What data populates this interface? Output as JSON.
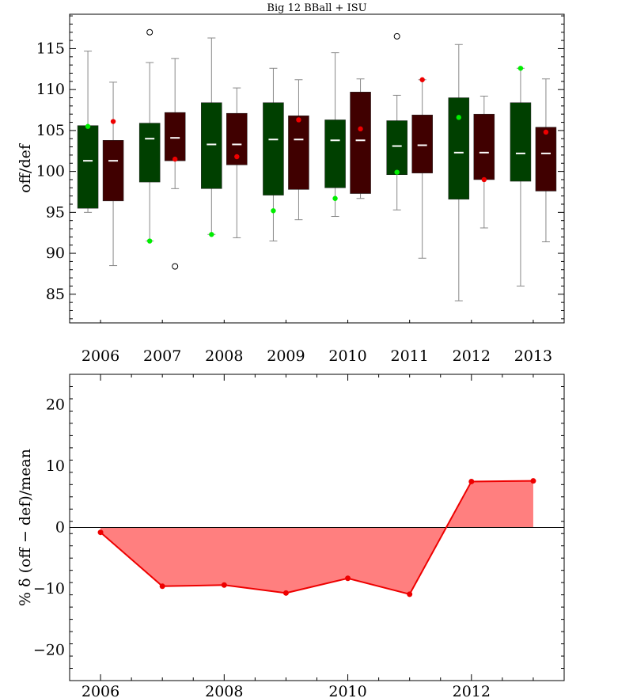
{
  "chart_data": [
    {
      "type": "box",
      "title": "Big 12 BBall + ISU",
      "ylabel": "off/def",
      "xlabel": "",
      "ylim": [
        81.5,
        119.2
      ],
      "yticks": [
        85,
        90,
        95,
        100,
        105,
        110,
        115
      ],
      "categories": [
        "2006",
        "2007",
        "2008",
        "2009",
        "2010",
        "2011",
        "2012",
        "2013"
      ],
      "series": [
        {
          "name": "",
          "box_color": "#004000",
          "marker_color": "#00ee00",
          "boxes": [
            {
              "min": 95.0,
              "q1": 95.5,
              "median": 101.3,
              "q3": 105.6,
              "max": 114.7,
              "outliers": [],
              "isu": 105.5
            },
            {
              "min": 91.5,
              "q1": 98.7,
              "median": 104.0,
              "q3": 105.9,
              "max": 113.3,
              "outliers": [
                117.0
              ],
              "isu": 91.5
            },
            {
              "min": 92.3,
              "q1": 97.9,
              "median": 103.3,
              "q3": 108.4,
              "max": 116.3,
              "outliers": [],
              "isu": 92.3
            },
            {
              "min": 91.5,
              "q1": 97.1,
              "median": 103.9,
              "q3": 108.4,
              "max": 112.6,
              "outliers": [],
              "isu": 95.2
            },
            {
              "min": 94.5,
              "q1": 98.0,
              "median": 103.8,
              "q3": 106.3,
              "max": 114.5,
              "outliers": [],
              "isu": 96.7
            },
            {
              "min": 95.3,
              "q1": 99.6,
              "median": 103.1,
              "q3": 106.2,
              "max": 109.3,
              "outliers": [
                116.5
              ],
              "isu": 99.9
            },
            {
              "min": 84.2,
              "q1": 96.6,
              "median": 102.3,
              "q3": 109.0,
              "max": 115.5,
              "outliers": [],
              "isu": 106.6
            },
            {
              "min": 86.0,
              "q1": 98.8,
              "median": 102.2,
              "q3": 108.4,
              "max": 112.6,
              "outliers": [],
              "isu": 112.6
            }
          ]
        },
        {
          "name": "",
          "box_color": "#400000",
          "marker_color": "#ee0000",
          "boxes": [
            {
              "min": 88.5,
              "q1": 96.4,
              "median": 101.3,
              "q3": 103.8,
              "max": 110.9,
              "outliers": [],
              "isu": 106.1
            },
            {
              "min": 97.9,
              "q1": 101.3,
              "median": 104.1,
              "q3": 107.2,
              "max": 113.8,
              "outliers": [
                88.4
              ],
              "isu": 101.5
            },
            {
              "min": 91.9,
              "q1": 100.8,
              "median": 103.3,
              "q3": 107.1,
              "max": 110.2,
              "outliers": [],
              "isu": 101.8
            },
            {
              "min": 94.1,
              "q1": 97.8,
              "median": 103.9,
              "q3": 106.8,
              "max": 111.2,
              "outliers": [],
              "isu": 106.3
            },
            {
              "min": 96.7,
              "q1": 97.3,
              "median": 103.8,
              "q3": 109.7,
              "max": 111.3,
              "outliers": [],
              "isu": 105.2
            },
            {
              "min": 89.4,
              "q1": 99.8,
              "median": 103.2,
              "q3": 106.9,
              "max": 111.2,
              "outliers": [],
              "isu": 111.2
            },
            {
              "min": 93.1,
              "q1": 99.0,
              "median": 102.3,
              "q3": 107.0,
              "max": 109.2,
              "outliers": [],
              "isu": 99.0
            },
            {
              "min": 91.4,
              "q1": 97.6,
              "median": 102.2,
              "q3": 105.4,
              "max": 111.3,
              "outliers": [],
              "isu": 104.8
            }
          ]
        }
      ]
    },
    {
      "type": "area",
      "title": "",
      "ylabel": "% δ (off − def)/mean",
      "xlabel": "",
      "xlim": [
        2005.5,
        2013.5
      ],
      "ylim": [
        -25,
        25
      ],
      "xticks": [
        2006,
        2008,
        2010,
        2012
      ],
      "yticks": [
        -20,
        -10,
        0,
        10,
        20
      ],
      "line_color": "#ee0000",
      "fill_color": "#ff7f7f",
      "x": [
        2006,
        2007,
        2008,
        2009,
        2010,
        2011,
        2012,
        2013
      ],
      "values": [
        -0.8,
        -9.6,
        -9.4,
        -10.7,
        -8.3,
        -10.9,
        7.5,
        7.6
      ]
    }
  ]
}
